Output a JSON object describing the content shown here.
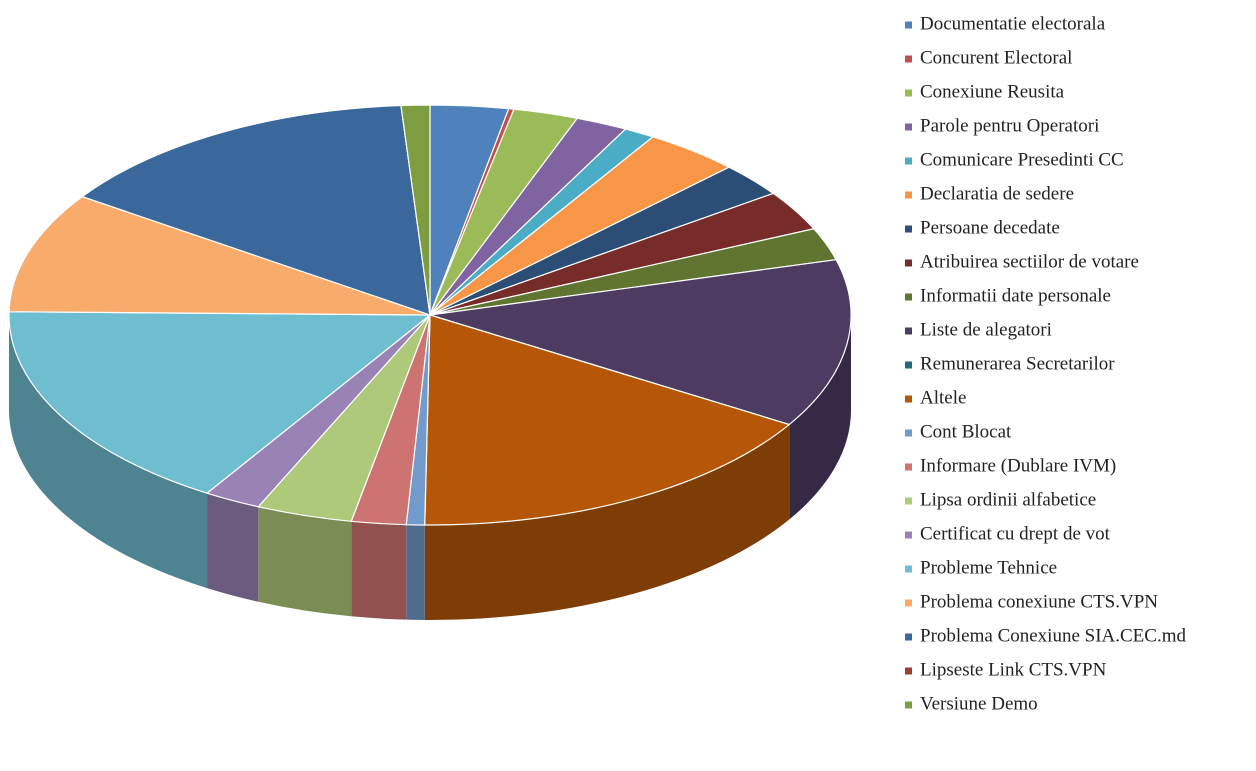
{
  "chart_data": {
    "type": "pie3d",
    "categories": [
      "Documentatie electorala",
      "Concurent Electoral",
      "Conexiune Reusita",
      "Parole pentru Operatori",
      "Comunicare Presedinti CC",
      "Declaratia de sedere",
      "Persoane decedate",
      "Atribuirea sectiilor de votare",
      "Informatii date personale",
      "Liste de alegatori",
      "Remunerarea Secretarilor",
      "Altele",
      "Cont Blocat",
      "Informare (Dublare IVM)",
      "Lipsa ordinii alfabetice",
      "Certificat cu drept de vot",
      "Probleme Tehnice",
      "Problema conexiune CTS.VPN",
      "Problema Conexiune SIA.CEC.md",
      "Lipseste Link CTS.VPN",
      "Versiune Demo"
    ],
    "values": [
      3,
      0.2,
      2.5,
      2,
      1.2,
      3.7,
      2.6,
      3.1,
      2.5,
      13,
      0,
      16.5,
      0.7,
      2.1,
      3.7,
      2.2,
      16.4,
      9.3,
      14.4,
      0,
      1.1
    ],
    "colors": [
      "#4f81bd",
      "#c0504d",
      "#9bbb59",
      "#8064a2",
      "#4bacc6",
      "#f79646",
      "#2c4d75",
      "#772c2a",
      "#5f7530",
      "#4d3b62",
      "#276a7c",
      "#b65708",
      "#729aca",
      "#cd7371",
      "#afc97a",
      "#9983b5",
      "#6fbdd1",
      "#f9ab6b",
      "#3a679c",
      "#9f3b38",
      "#7e9c40"
    ],
    "legend": "right"
  }
}
